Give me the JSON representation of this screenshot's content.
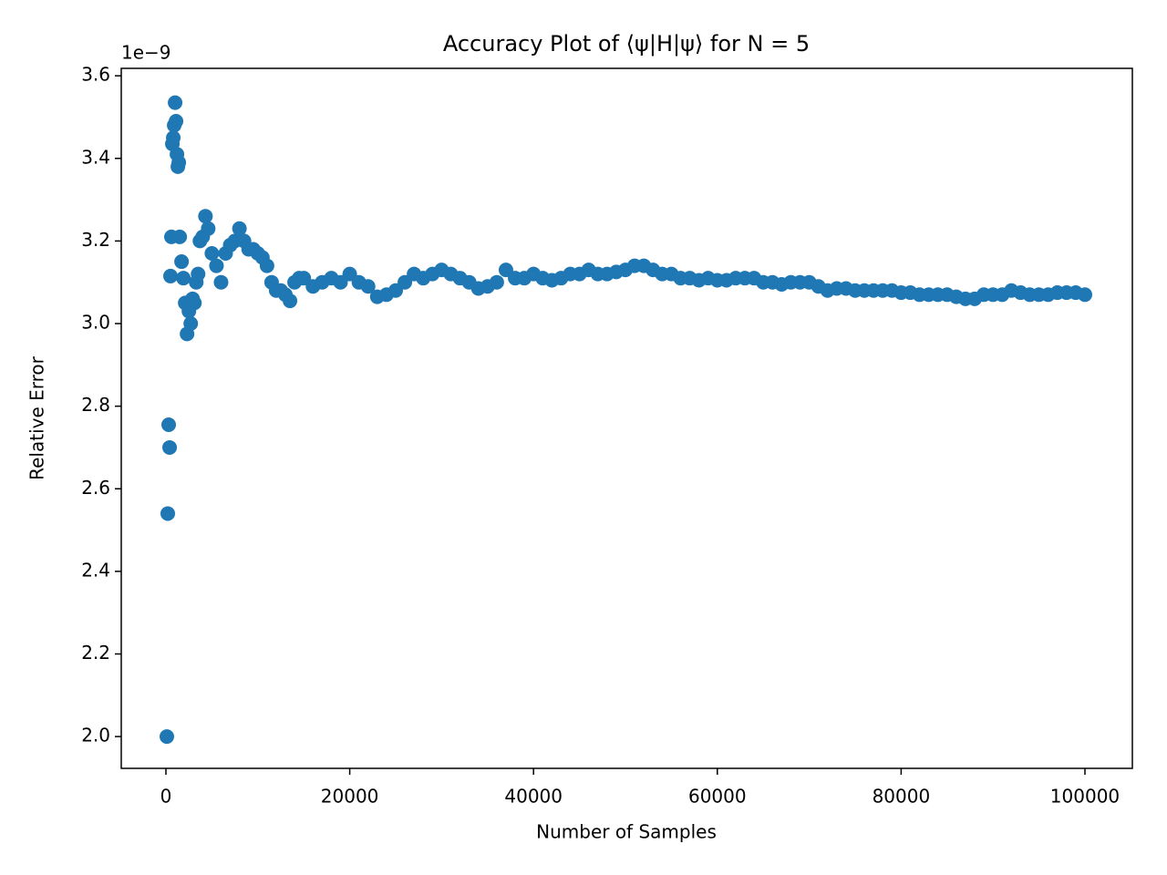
{
  "chart_data": {
    "type": "scatter",
    "title": "Accuracy Plot of ⟨ψ|H|ψ⟩ for N = 5",
    "x_label": "Number of Samples",
    "y_label": "Relative Error",
    "y_offset_label": "1e−9",
    "color": "#1f77b4",
    "xlim": [
      -4860,
      105160
    ],
    "ylim": [
      1.923,
      3.618
    ],
    "xticks": [
      0,
      20000,
      40000,
      60000,
      80000,
      100000
    ],
    "yticks": [
      {
        "value": 2.0,
        "label": "2.0"
      },
      {
        "value": 2.2,
        "label": "2.2"
      },
      {
        "value": 2.4,
        "label": "2.4"
      },
      {
        "value": 2.6,
        "label": "2.6"
      },
      {
        "value": 2.8,
        "label": "2.8"
      },
      {
        "value": 3.0,
        "label": "3.0"
      },
      {
        "value": 3.2,
        "label": "3.2"
      },
      {
        "value": 3.4,
        "label": "3.4"
      },
      {
        "value": 3.6,
        "label": "3.6"
      }
    ],
    "x": [
      100,
      200,
      300,
      400,
      500,
      600,
      700,
      800,
      900,
      1000,
      1100,
      1200,
      1300,
      1400,
      1500,
      1700,
      1900,
      2100,
      2300,
      2500,
      2700,
      2900,
      3100,
      3300,
      3500,
      3700,
      4000,
      4300,
      4600,
      5000,
      5500,
      6000,
      6500,
      7000,
      7500,
      8000,
      8500,
      9000,
      9500,
      10000,
      10500,
      11000,
      11500,
      12000,
      12500,
      13000,
      13500,
      14000,
      14500,
      15000,
      16000,
      17000,
      18000,
      19000,
      20000,
      21000,
      22000,
      23000,
      24000,
      25000,
      26000,
      27000,
      28000,
      29000,
      30000,
      31000,
      32000,
      33000,
      34000,
      35000,
      36000,
      37000,
      38000,
      39000,
      40000,
      41000,
      42000,
      43000,
      44000,
      45000,
      46000,
      47000,
      48000,
      49000,
      50000,
      51000,
      52000,
      53000,
      54000,
      55000,
      56000,
      57000,
      58000,
      59000,
      60000,
      61000,
      62000,
      63000,
      64000,
      65000,
      66000,
      67000,
      68000,
      69000,
      70000,
      71000,
      72000,
      73000,
      74000,
      75000,
      76000,
      77000,
      78000,
      79000,
      80000,
      81000,
      82000,
      83000,
      84000,
      85000,
      86000,
      87000,
      88000,
      89000,
      90000,
      91000,
      92000,
      93000,
      94000,
      95000,
      96000,
      97000,
      98000,
      99000,
      100000
    ],
    "values": [
      2.0,
      2.54,
      2.755,
      2.7,
      3.115,
      3.21,
      3.435,
      3.45,
      3.48,
      3.535,
      3.49,
      3.41,
      3.38,
      3.39,
      3.21,
      3.15,
      3.11,
      3.05,
      2.975,
      3.03,
      3.0,
      3.06,
      3.05,
      3.1,
      3.12,
      3.2,
      3.21,
      3.26,
      3.23,
      3.17,
      3.14,
      3.1,
      3.17,
      3.19,
      3.2,
      3.23,
      3.2,
      3.18,
      3.18,
      3.17,
      3.16,
      3.14,
      3.1,
      3.08,
      3.08,
      3.07,
      3.055,
      3.1,
      3.11,
      3.11,
      3.09,
      3.1,
      3.11,
      3.1,
      3.12,
      3.1,
      3.09,
      3.065,
      3.07,
      3.08,
      3.1,
      3.12,
      3.11,
      3.12,
      3.13,
      3.12,
      3.11,
      3.1,
      3.085,
      3.09,
      3.1,
      3.13,
      3.11,
      3.11,
      3.12,
      3.11,
      3.105,
      3.11,
      3.12,
      3.12,
      3.13,
      3.12,
      3.12,
      3.125,
      3.13,
      3.14,
      3.14,
      3.13,
      3.12,
      3.12,
      3.11,
      3.11,
      3.105,
      3.11,
      3.105,
      3.105,
      3.11,
      3.11,
      3.11,
      3.1,
      3.1,
      3.095,
      3.1,
      3.1,
      3.1,
      3.09,
      3.08,
      3.085,
      3.085,
      3.08,
      3.08,
      3.08,
      3.08,
      3.08,
      3.075,
      3.075,
      3.07,
      3.07,
      3.07,
      3.07,
      3.065,
      3.06,
      3.06,
      3.07,
      3.07,
      3.07,
      3.08,
      3.075,
      3.07,
      3.07,
      3.07,
      3.075,
      3.075,
      3.075,
      3.07
    ]
  }
}
